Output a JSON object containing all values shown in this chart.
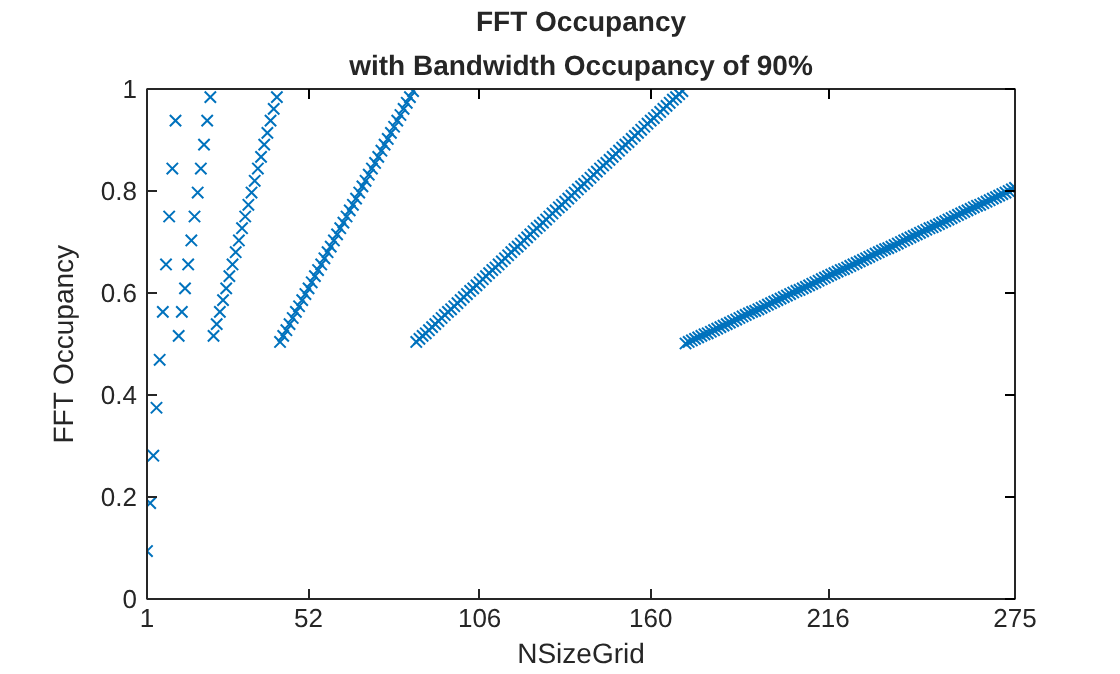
{
  "chart_data": {
    "type": "scatter",
    "title": "FFT Occupancy",
    "subtitle": "with Bandwidth Occupancy of 90%",
    "xlabel": "NSizeGrid",
    "ylabel": "FFT Occupancy",
    "xlim": [
      1,
      275
    ],
    "xticks": [
      1,
      52,
      106,
      160,
      216,
      275
    ],
    "ylim": [
      0,
      1
    ],
    "yticks": [
      0,
      0.2,
      0.4,
      0.6,
      0.8,
      1
    ],
    "grid": false,
    "marker": "cross",
    "x": [
      1,
      2,
      3,
      4,
      5,
      6,
      7,
      8,
      9,
      10,
      11,
      12,
      13,
      14,
      15,
      16,
      17,
      18,
      19,
      20,
      21,
      22,
      23,
      24,
      25,
      26,
      27,
      28,
      29,
      30,
      31,
      32,
      33,
      34,
      35,
      36,
      37,
      38,
      39,
      40,
      41,
      42,
      43,
      44,
      45,
      46,
      47,
      48,
      49,
      50,
      51,
      52,
      53,
      54,
      55,
      56,
      57,
      58,
      59,
      60,
      61,
      62,
      63,
      64,
      65,
      66,
      67,
      68,
      69,
      70,
      71,
      72,
      73,
      74,
      75,
      76,
      77,
      78,
      79,
      80,
      81,
      82,
      83,
      84,
      85,
      86,
      87,
      88,
      89,
      90,
      91,
      92,
      93,
      94,
      95,
      96,
      97,
      98,
      99,
      100,
      101,
      102,
      103,
      104,
      105,
      106,
      107,
      108,
      109,
      110,
      111,
      112,
      113,
      114,
      115,
      116,
      117,
      118,
      119,
      120,
      121,
      122,
      123,
      124,
      125,
      126,
      127,
      128,
      129,
      130,
      131,
      132,
      133,
      134,
      135,
      136,
      137,
      138,
      139,
      140,
      141,
      142,
      143,
      144,
      145,
      146,
      147,
      148,
      149,
      150,
      151,
      152,
      153,
      154,
      155,
      156,
      157,
      158,
      159,
      160,
      161,
      162,
      163,
      164,
      165,
      166,
      167,
      168,
      169,
      170,
      171,
      172,
      173,
      174,
      175,
      176,
      177,
      178,
      179,
      180,
      181,
      182,
      183,
      184,
      185,
      186,
      187,
      188,
      189,
      190,
      191,
      192,
      193,
      194,
      195,
      196,
      197,
      198,
      199,
      200,
      201,
      202,
      203,
      204,
      205,
      206,
      207,
      208,
      209,
      210,
      211,
      212,
      213,
      214,
      215,
      216,
      217,
      218,
      219,
      220,
      221,
      222,
      223,
      224,
      225,
      226,
      227,
      228,
      229,
      230,
      231,
      232,
      233,
      234,
      235,
      236,
      237,
      238,
      239,
      240,
      241,
      242,
      243,
      244,
      245,
      246,
      247,
      248,
      249,
      250,
      251,
      252,
      253,
      254,
      255,
      256,
      257,
      258,
      259,
      260,
      261,
      262,
      263,
      264,
      265,
      266,
      267,
      268,
      269,
      270,
      271,
      272,
      273,
      274,
      275
    ],
    "series": [
      {
        "color": "#0072bd",
        "values": [
          0.094,
          0.188,
          0.281,
          0.375,
          0.469,
          0.563,
          0.656,
          0.75,
          0.844,
          0.938,
          0.516,
          0.563,
          0.609,
          0.656,
          0.703,
          0.75,
          0.797,
          0.844,
          0.891,
          0.938,
          0.984,
          0.516,
          0.539,
          0.563,
          0.586,
          0.609,
          0.633,
          0.656,
          0.68,
          0.703,
          0.727,
          0.75,
          0.773,
          0.797,
          0.82,
          0.844,
          0.867,
          0.891,
          0.914,
          0.938,
          0.961,
          0.984,
          0.504,
          0.516,
          0.527,
          0.539,
          0.551,
          0.563,
          0.574,
          0.586,
          0.598,
          0.609,
          0.621,
          0.633,
          0.645,
          0.656,
          0.668,
          0.68,
          0.691,
          0.703,
          0.715,
          0.727,
          0.738,
          0.75,
          0.762,
          0.773,
          0.785,
          0.797,
          0.809,
          0.82,
          0.832,
          0.844,
          0.855,
          0.867,
          0.879,
          0.891,
          0.902,
          0.914,
          0.926,
          0.938,
          0.949,
          0.961,
          0.973,
          0.984,
          0.996,
          0.504,
          0.51,
          0.516,
          0.521,
          0.527,
          0.533,
          0.539,
          0.545,
          0.551,
          0.557,
          0.563,
          0.568,
          0.574,
          0.58,
          0.586,
          0.592,
          0.598,
          0.604,
          0.609,
          0.615,
          0.621,
          0.627,
          0.633,
          0.639,
          0.645,
          0.65,
          0.656,
          0.662,
          0.668,
          0.674,
          0.68,
          0.686,
          0.691,
          0.697,
          0.703,
          0.709,
          0.715,
          0.721,
          0.727,
          0.732,
          0.738,
          0.744,
          0.75,
          0.756,
          0.762,
          0.768,
          0.773,
          0.779,
          0.785,
          0.791,
          0.797,
          0.803,
          0.809,
          0.814,
          0.82,
          0.826,
          0.832,
          0.838,
          0.844,
          0.85,
          0.855,
          0.861,
          0.867,
          0.873,
          0.879,
          0.885,
          0.891,
          0.896,
          0.902,
          0.908,
          0.914,
          0.92,
          0.926,
          0.932,
          0.938,
          0.943,
          0.949,
          0.955,
          0.961,
          0.967,
          0.973,
          0.979,
          0.984,
          0.99,
          0.996,
          0.501,
          0.504,
          0.507,
          0.51,
          0.513,
          0.516,
          0.519,
          0.521,
          0.524,
          0.527,
          0.53,
          0.533,
          0.536,
          0.539,
          0.542,
          0.545,
          0.548,
          0.551,
          0.554,
          0.557,
          0.56,
          0.563,
          0.565,
          0.568,
          0.571,
          0.574,
          0.577,
          0.58,
          0.583,
          0.586,
          0.589,
          0.592,
          0.595,
          0.598,
          0.601,
          0.604,
          0.606,
          0.609,
          0.612,
          0.615,
          0.618,
          0.621,
          0.624,
          0.627,
          0.63,
          0.633,
          0.636,
          0.639,
          0.642,
          0.645,
          0.647,
          0.65,
          0.653,
          0.656,
          0.659,
          0.662,
          0.665,
          0.668,
          0.671,
          0.674,
          0.677,
          0.68,
          0.683,
          0.686,
          0.688,
          0.691,
          0.694,
          0.697,
          0.7,
          0.703,
          0.706,
          0.709,
          0.712,
          0.715,
          0.718,
          0.721,
          0.724,
          0.727,
          0.729,
          0.732,
          0.735,
          0.738,
          0.741,
          0.744,
          0.747,
          0.75,
          0.753,
          0.756,
          0.759,
          0.762,
          0.765,
          0.768,
          0.771,
          0.773,
          0.776,
          0.779,
          0.782,
          0.785,
          0.788,
          0.791,
          0.794,
          0.797,
          0.8,
          0.803,
          0.806
        ]
      }
    ]
  }
}
